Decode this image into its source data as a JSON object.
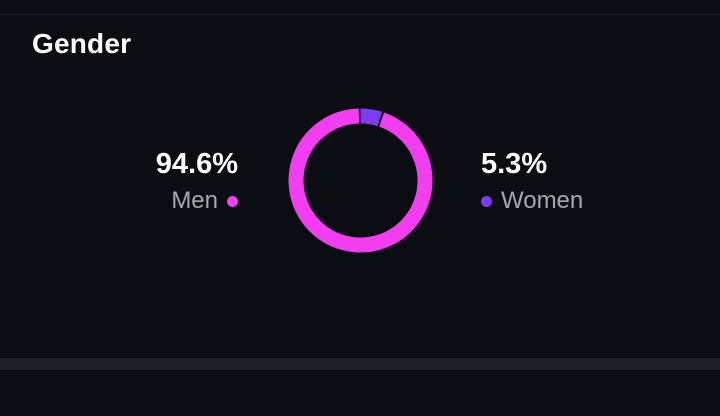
{
  "card": {
    "title": "Gender"
  },
  "stats": {
    "men": {
      "value": "94.6%",
      "label": "Men",
      "color": "#f23ef0"
    },
    "women": {
      "value": "5.3%",
      "label": "Women",
      "color": "#7b3cf2"
    }
  },
  "chart_data": {
    "type": "pie",
    "categories": [
      "Men",
      "Women"
    ],
    "values": [
      94.6,
      5.3
    ],
    "colors": [
      "#f23ef0",
      "#7b3cf2"
    ],
    "donut": true
  }
}
